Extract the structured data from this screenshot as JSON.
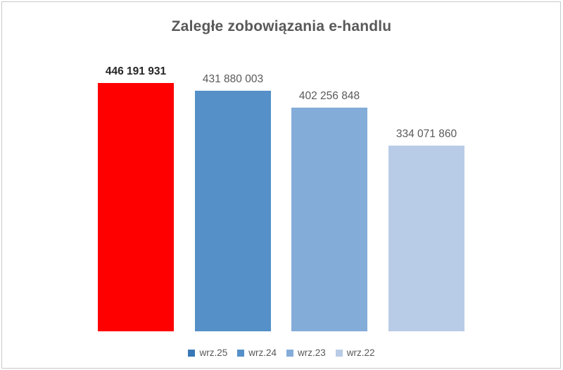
{
  "chart_data": {
    "type": "bar",
    "title": "Zaległe zobowiązania e-handlu",
    "categories": [
      "wrz.25",
      "wrz.24",
      "wrz.23",
      "wrz.22"
    ],
    "values": [
      446191931,
      431880003,
      402256848,
      334071860
    ],
    "value_labels": [
      "446 191 931",
      "431 880 003",
      "402 256 848",
      "334 071 860"
    ],
    "bar_colors": [
      "#ff0000",
      "#5590c8",
      "#84acd9",
      "#b9cce7"
    ],
    "legend_swatch_colors": [
      "#3878b6",
      "#5590c8",
      "#84acd9",
      "#b9cce7"
    ],
    "highlighted_index": 0,
    "xlabel": "",
    "ylabel": "",
    "grid": false,
    "axes_visible": false,
    "legend_position": "bottom",
    "ylim": [
      0,
      446191931
    ]
  },
  "colors": {
    "background": "#ffffff",
    "border": "#c9c9c9",
    "title_text": "#595959",
    "value_label_text": "#595959",
    "highlight_value_label_text": "#262626",
    "legend_text": "#595959"
  }
}
